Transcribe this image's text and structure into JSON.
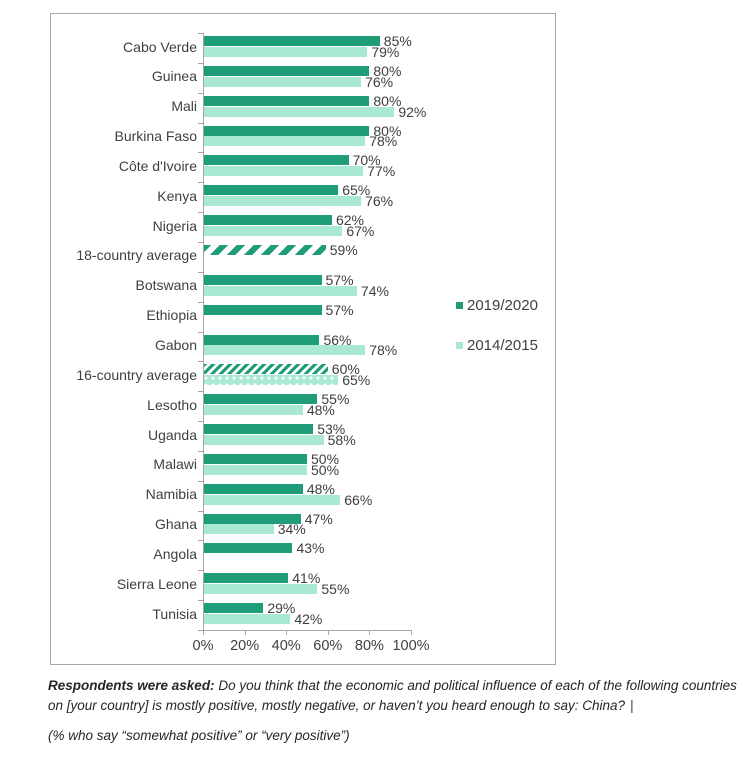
{
  "chart_data": {
    "type": "bar",
    "orientation": "horizontal",
    "categories": [
      "Cabo Verde",
      "Guinea",
      "Mali",
      "Burkina Faso",
      "Côte d'Ivoire",
      "Kenya",
      "Nigeria",
      "18-country average",
      "Botswana",
      "Ethiopia",
      "Gabon",
      "16-country average",
      "Lesotho",
      "Uganda",
      "Malawi",
      "Namibia",
      "Ghana",
      "Angola",
      "Sierra Leone",
      "Tunisia"
    ],
    "series": [
      {
        "name": "2019/2020",
        "color": "#1f9c78",
        "values": [
          85,
          80,
          80,
          80,
          70,
          65,
          62,
          59,
          57,
          57,
          56,
          60,
          55,
          53,
          50,
          48,
          47,
          43,
          41,
          29
        ]
      },
      {
        "name": "2014/2015",
        "color": "#a9e8d2",
        "values": [
          79,
          76,
          92,
          78,
          77,
          76,
          67,
          null,
          74,
          null,
          78,
          65,
          48,
          58,
          50,
          66,
          34,
          null,
          55,
          42
        ]
      }
    ],
    "hatch_patterns": {
      "18-country average": "wide",
      "16-country average": "fine"
    },
    "value_suffix": "%",
    "xlim": [
      0,
      100
    ],
    "x_ticks": [
      0,
      20,
      40,
      60,
      80,
      100
    ],
    "x_tick_labels": [
      "0%",
      "20%",
      "40%",
      "60%",
      "80%",
      "100%"
    ],
    "grid": false,
    "legend_position": "right-middle",
    "title": ""
  },
  "colors": {
    "series_dark": "#1f9c78",
    "series_light": "#a9e8d2",
    "axis": "#a6a6a6",
    "frame_border": "#a6a6a6",
    "label_text": "#404040"
  },
  "footer": {
    "lead": "Respondents were asked:",
    "question": " Do you think that the economic and political influence of each of the following countries on [your country] is mostly positive, mostly negative, or haven’t you heard enough to say: China?",
    "cursor": "|",
    "note": "(% who say “somewhat positive” or “very positive”)"
  }
}
